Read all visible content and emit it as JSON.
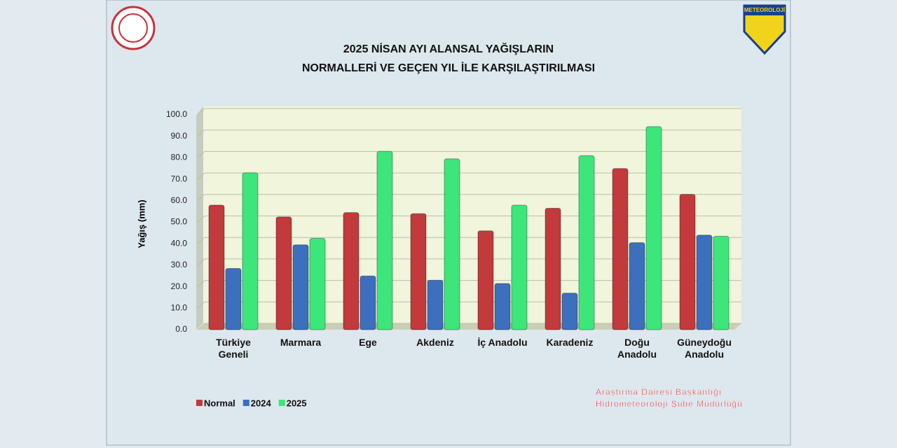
{
  "chart_data": {
    "type": "bar",
    "title_lines": [
      "2025 NİSAN AYI ALANSAL YAĞIŞLARIN",
      "NORMALLERİ VE GEÇEN YIL İLE KARŞILAŞTIRILMASI"
    ],
    "y_label": "Yağış (mm)",
    "categories": [
      "Türkiye Geneli",
      "Marmara",
      "Ege",
      "Akdeniz",
      "İç Anadolu",
      "Karadeniz",
      "Doğu Anadolu",
      "Güneydoğu Anadolu"
    ],
    "series": [
      {
        "name": "Normal",
        "color": "#c23a3c",
        "values": [
          58,
          52.5,
          54.5,
          54,
          46,
          56.5,
          75,
          63
        ]
      },
      {
        "name": "2024",
        "color": "#3c70bd",
        "values": [
          28.5,
          39.5,
          25,
          23,
          21.5,
          17,
          40.5,
          44
        ]
      },
      {
        "name": "2025",
        "color": "#3de67a",
        "values": [
          73,
          42.5,
          83,
          79.5,
          58,
          81,
          94.5,
          43.5
        ]
      }
    ],
    "ylim": [
      0,
      100
    ],
    "yticks": [
      {
        "value": 0,
        "label": "0.0"
      },
      {
        "value": 10,
        "label": "10.0"
      },
      {
        "value": 20,
        "label": "20.0"
      },
      {
        "value": 30,
        "label": "30.0"
      },
      {
        "value": 40,
        "label": "40.0"
      },
      {
        "value": 50,
        "label": "50.0"
      },
      {
        "value": 60,
        "label": "60.0"
      },
      {
        "value": 70,
        "label": "70.0"
      },
      {
        "value": 80,
        "label": "80.0"
      },
      {
        "value": 90,
        "label": "90.0"
      },
      {
        "value": 100,
        "label": "100.0"
      }
    ],
    "grid": true,
    "legend": "bottom-left",
    "annotations": [
      "Araştırma Dairesi Başkanlığı",
      "Hidrometeoroloji Şube Müdürlüğü"
    ],
    "logo_text": "METEOROLOJİ"
  }
}
